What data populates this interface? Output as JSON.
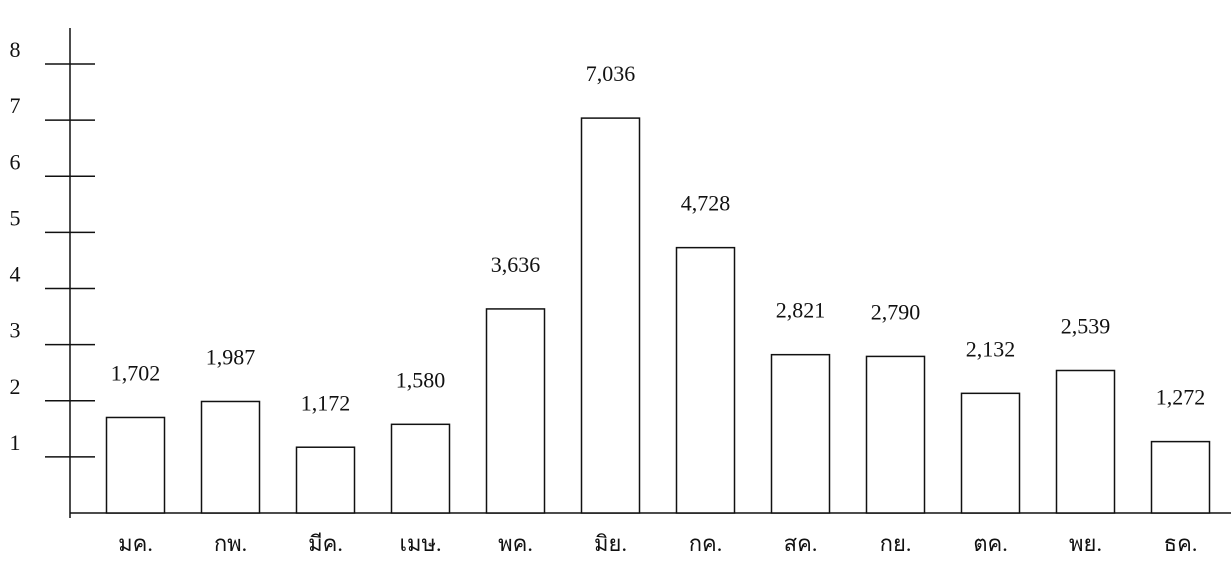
{
  "chart_data": {
    "type": "bar",
    "categories": [
      "มค.",
      "กพ.",
      "มีค.",
      "เมษ.",
      "พค.",
      "มิย.",
      "กค.",
      "สค.",
      "กย.",
      "ตค.",
      "พย.",
      "ธค."
    ],
    "values": [
      1.702,
      1.987,
      1.172,
      1.58,
      3.636,
      7.036,
      4.728,
      2.821,
      2.79,
      2.132,
      2.539,
      1.272
    ],
    "value_labels": [
      "1,702",
      "1,987",
      "1,172",
      "1,580",
      "3,636",
      "7,036",
      "4,728",
      "2,821",
      "2,790",
      "2,132",
      "2,539",
      "1,272"
    ],
    "color": "#ffffff",
    "ylim": [
      0,
      8
    ],
    "yticks": [
      1,
      2,
      3,
      4,
      5,
      6,
      7,
      8
    ]
  }
}
